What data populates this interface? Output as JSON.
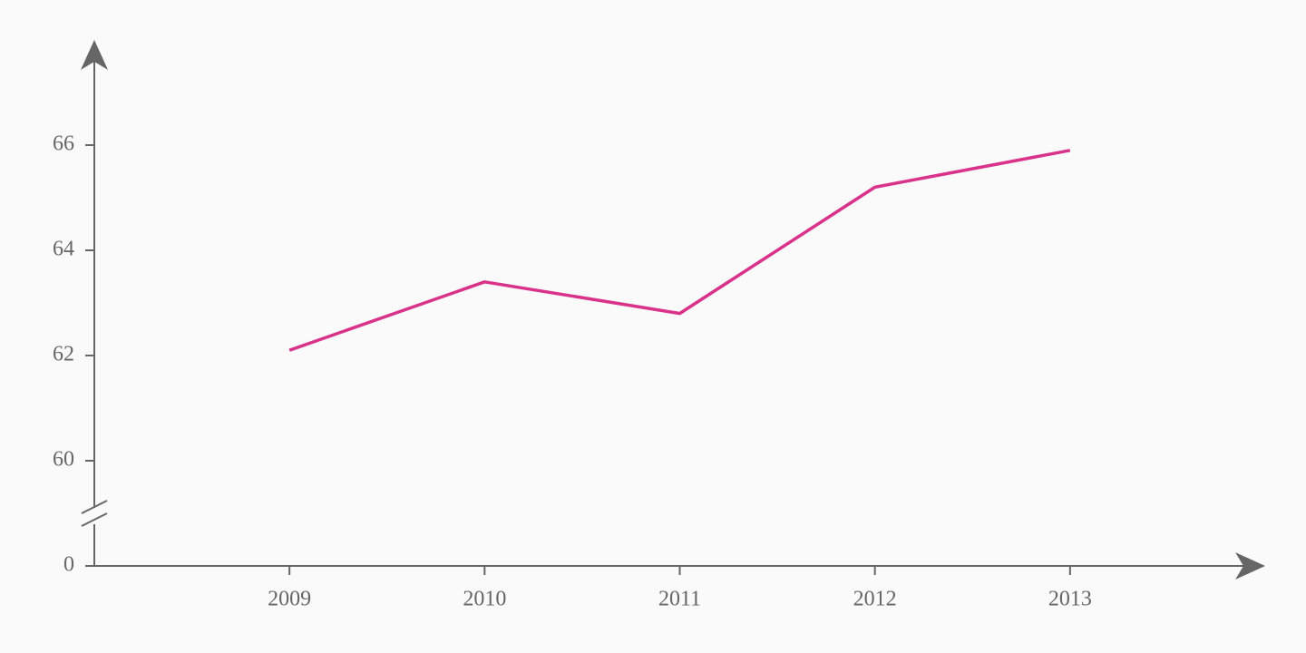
{
  "chart_data": {
    "type": "line",
    "categories": [
      "2009",
      "2010",
      "2011",
      "2012",
      "2013"
    ],
    "values": [
      62.1,
      63.4,
      62.8,
      65.2,
      65.9
    ],
    "color": "#d9328a",
    "ylim": [
      0,
      68
    ],
    "yticks": [
      0,
      60,
      62,
      64,
      66
    ],
    "axis_break": [
      0,
      59
    ]
  }
}
